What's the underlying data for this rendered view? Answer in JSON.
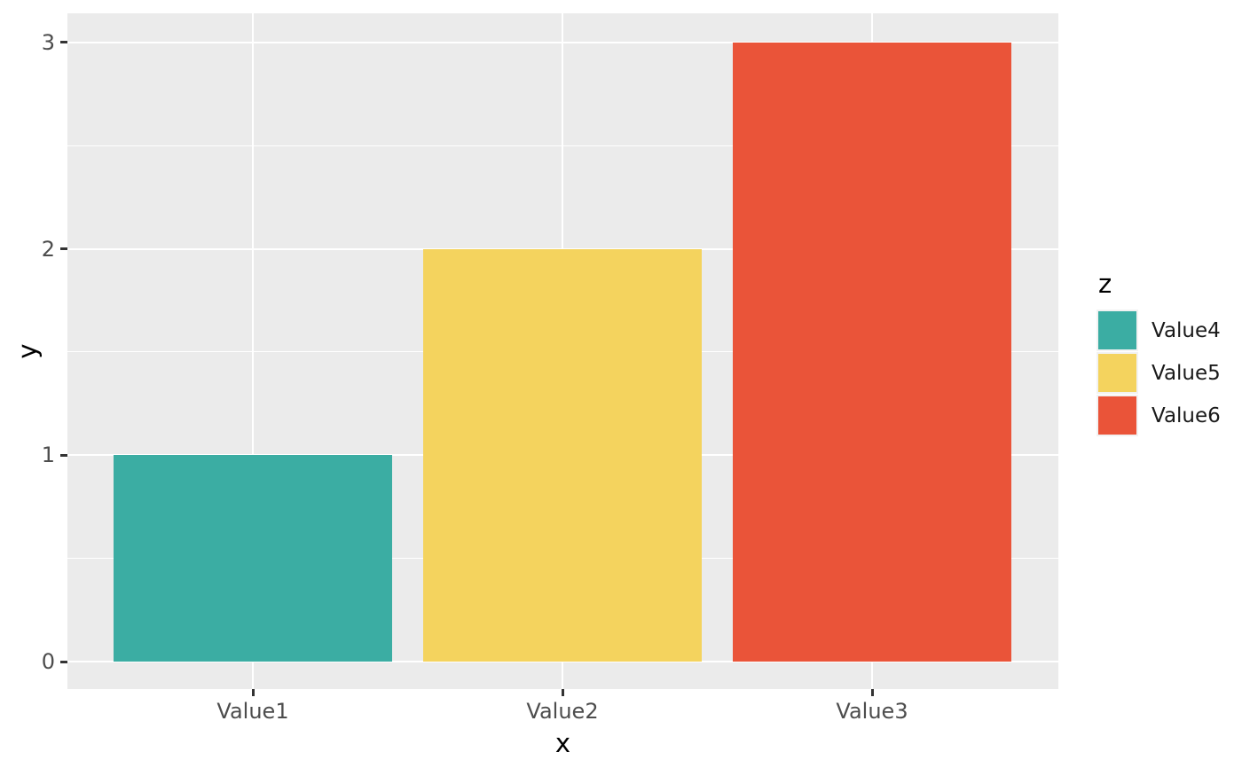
{
  "figure": {
    "background": "#FFFFFF",
    "panel_background": "#EBEBEB",
    "grid_color": "#FFFFFF",
    "tick_text_color": "#4D4D4D",
    "tick_mark_color": "#333333"
  },
  "chart_data": {
    "type": "bar",
    "title": "",
    "xlabel": "x",
    "ylabel": "y",
    "categories": [
      "Value1",
      "Value2",
      "Value3"
    ],
    "values": [
      1,
      2,
      3
    ],
    "bar_colors": [
      "#3BADA3",
      "#F4D35E",
      "#EA5439"
    ],
    "ylim": [
      0,
      3
    ],
    "y_ticks": [
      0,
      1,
      2,
      3
    ],
    "y_minor_ticks": [
      0.5,
      1.5,
      2.5
    ],
    "grid": true,
    "legend": {
      "title": "z",
      "position": "right",
      "entries": [
        {
          "label": "Value4",
          "color": "#3BADA3"
        },
        {
          "label": "Value5",
          "color": "#F4D35E"
        },
        {
          "label": "Value6",
          "color": "#EA5439"
        }
      ]
    }
  }
}
